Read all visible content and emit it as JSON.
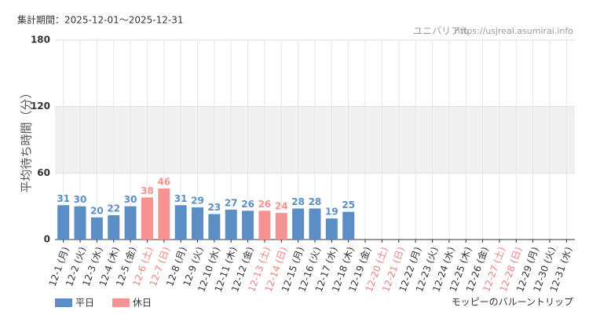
{
  "chart_data": {
    "type": "bar",
    "period": "集計期間：2025-12-01〜2025-12-31",
    "site": "ユニバリアル",
    "url": "https://usjreal.asumirai.info",
    "ylabel": "平均待ち時間（分）",
    "attraction": "モッピーのバルーントリップ",
    "categories": [
      "12-1 (月)",
      "12-2 (火)",
      "12-3 (水)",
      "12-4 (木)",
      "12-5 (金)",
      "12-6 (土)",
      "12-7 (日)",
      "12-8 (月)",
      "12-9 (火)",
      "12-10 (水)",
      "12-11 (木)",
      "12-12 (金)",
      "12-13 (土)",
      "12-14 (日)",
      "12-15 (月)",
      "12-16 (火)",
      "12-17 (水)",
      "12-18 (木)",
      "12-19 (金)",
      "12-20 (土)",
      "12-21 (日)",
      "12-22 (月)",
      "12-23 (火)",
      "12-24 (水)",
      "12-25 (木)",
      "12-26 (金)",
      "12-27 (土)",
      "12-28 (日)",
      "12-29 (月)",
      "12-30 (火)",
      "12-31 (水)"
    ],
    "category_colors": [
      "#333",
      "#333",
      "#333",
      "#333",
      "#333",
      "#f08080",
      "#f08080",
      "#333",
      "#333",
      "#333",
      "#333",
      "#333",
      "#f08080",
      "#f08080",
      "#333",
      "#333",
      "#333",
      "#333",
      "#333",
      "#f08080",
      "#f08080",
      "#333",
      "#333",
      "#333",
      "#333",
      "#333",
      "#f08080",
      "#f08080",
      "#333",
      "#333",
      "#333"
    ],
    "series": [
      {
        "name": "平日",
        "color": "#5b8ec4",
        "values": [
          31,
          30,
          20,
          22,
          30,
          null,
          null,
          31,
          29,
          23,
          27,
          26,
          null,
          null,
          28,
          28,
          19,
          25,
          null,
          null,
          null,
          null,
          null,
          null,
          null,
          null,
          null,
          null,
          null,
          null,
          null
        ]
      },
      {
        "name": "休日",
        "color": "#f59393",
        "values": [
          null,
          null,
          null,
          null,
          null,
          38,
          46,
          null,
          null,
          null,
          null,
          null,
          26,
          24,
          null,
          null,
          null,
          null,
          null,
          null,
          null,
          null,
          null,
          null,
          null,
          null,
          null,
          null,
          null,
          null,
          null
        ]
      }
    ],
    "ylim": [
      0,
      180
    ],
    "yticks": [
      0,
      60,
      120,
      180
    ],
    "grid": true,
    "band_color": "#f0f0f0"
  }
}
